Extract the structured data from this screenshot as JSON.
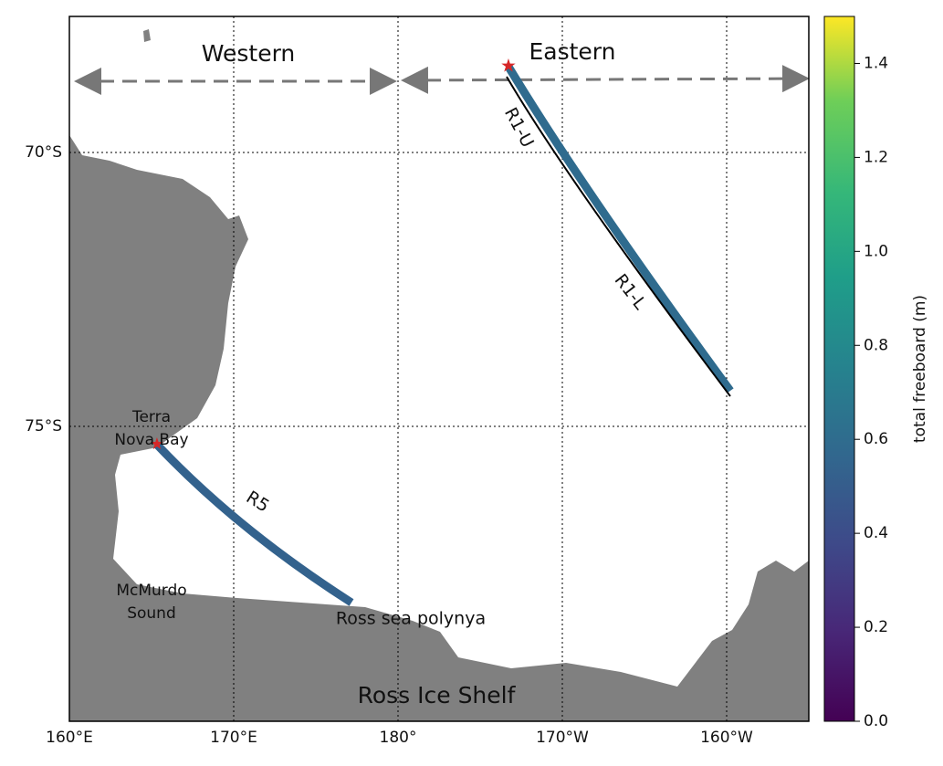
{
  "map": {
    "region_labels": {
      "western": "Western",
      "eastern": "Eastern"
    },
    "track_labels": {
      "r1_upper": "R1-U",
      "r1_lower": "R1-L",
      "r5": "R5"
    },
    "place_labels": {
      "terra_nova_bay": [
        "Terra",
        "Nova Bay"
      ],
      "mcmurdo_sound": [
        "McMurdo",
        "Sound"
      ],
      "ross_sea_polynya": "Ross sea polynya",
      "ross_ice_shelf": "Ross Ice Shelf"
    },
    "lon_ticks": [
      "160°E",
      "170°E",
      "180°",
      "170°W",
      "160°W"
    ],
    "lat_ticks": [
      "70°S",
      "75°S"
    ]
  },
  "colorbar": {
    "label": "total freeboard (m)",
    "lim": [
      0,
      1.5
    ],
    "ticks": [
      {
        "value": 0,
        "label": "0.0"
      },
      0.2,
      0.4,
      0.6,
      0.8,
      {
        "value": 1,
        "label": "1.0"
      },
      1.2,
      1.4
    ]
  }
}
